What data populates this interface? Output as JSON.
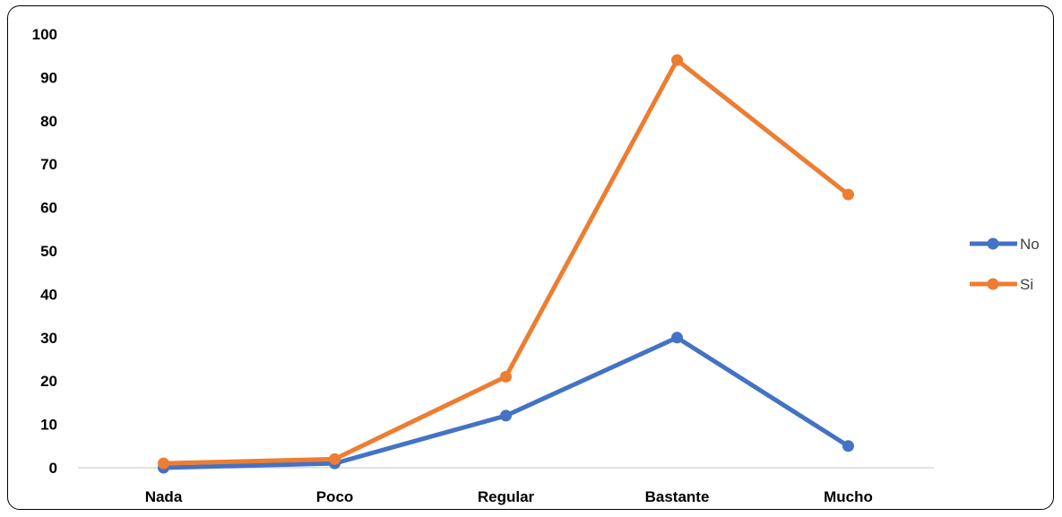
{
  "chart_data": {
    "type": "line",
    "title": "",
    "xlabel": "",
    "ylabel": "",
    "categories": [
      "Nada",
      "Poco",
      "Regular",
      "Bastante",
      "Mucho"
    ],
    "ylim": [
      0,
      100
    ],
    "yticks": [
      "0",
      "10",
      "20",
      "30",
      "40",
      "50",
      "60",
      "70",
      "80",
      "90",
      "100"
    ],
    "grid": false,
    "legend_position": "right",
    "series": [
      {
        "name": "No",
        "color": "#4472C4",
        "values": [
          0,
          1,
          12,
          30,
          5
        ]
      },
      {
        "name": "Si",
        "color": "#ED7D31",
        "values": [
          1,
          2,
          21,
          94,
          63
        ]
      }
    ]
  }
}
